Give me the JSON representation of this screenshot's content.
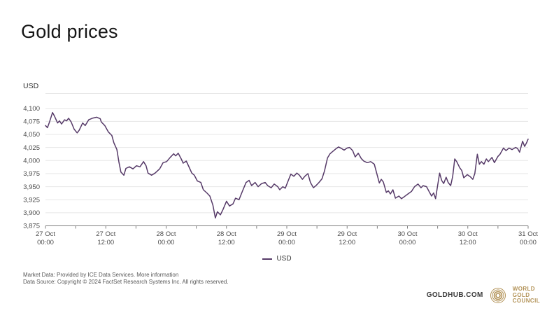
{
  "page": {
    "title": "Gold prices"
  },
  "colors": {
    "line_purple": "#563a68",
    "gold": "#b39358",
    "grid": "#e7e7e7",
    "axis": "#808080",
    "tick_text": "#4d4d4d"
  },
  "legend": {
    "label": "USD"
  },
  "footer": {
    "market_data_prefix": "Market Data: Provided by ICE Data Services. ",
    "more_info_link": "More information",
    "source_line": "Data Source: Copyright © 2024 FactSet Research Systems Inc. All rights reserved.",
    "brand": "GOLDHUB.COM",
    "logo_lines": [
      "WORLD",
      "GOLD",
      "COUNCIL"
    ]
  },
  "chart_data": {
    "type": "line",
    "title": "Gold prices",
    "ylabel": "USD",
    "ylim": [
      3875,
      4129
    ],
    "grid": true,
    "legend_position": "bottom-center",
    "yticks": [
      {
        "value": 4100,
        "label": "4,100"
      },
      {
        "value": 4075,
        "label": "4,075"
      },
      {
        "value": 4050,
        "label": "4,050"
      },
      {
        "value": 4025,
        "label": "4,025"
      },
      {
        "value": 4000,
        "label": "4,000"
      },
      {
        "value": 3975,
        "label": "3,975"
      },
      {
        "value": 3950,
        "label": "3,950"
      },
      {
        "value": 3925,
        "label": "3,925"
      },
      {
        "value": 3900,
        "label": "3,900"
      },
      {
        "value": 3875,
        "label": "3,875"
      }
    ],
    "x_axis": {
      "unit": "hours since 27 Oct 00:00",
      "range": [
        0,
        96
      ],
      "minor_tick_step": 6
    },
    "xticks": [
      {
        "pos": 0,
        "line1": "27 Oct",
        "line2": "00:00"
      },
      {
        "pos": 12,
        "line1": "27 Oct",
        "line2": "12:00"
      },
      {
        "pos": 24,
        "line1": "28 Oct",
        "line2": "00:00"
      },
      {
        "pos": 36,
        "line1": "28 Oct",
        "line2": "12:00"
      },
      {
        "pos": 48,
        "line1": "29 Oct",
        "line2": "00:00"
      },
      {
        "pos": 60,
        "line1": "29 Oct",
        "line2": "12:00"
      },
      {
        "pos": 72,
        "line1": "30 Oct",
        "line2": "00:00"
      },
      {
        "pos": 84,
        "line1": "30 Oct",
        "line2": "12:00"
      },
      {
        "pos": 96,
        "line1": "31 Oct",
        "line2": "00:00"
      }
    ],
    "series": [
      {
        "name": "USD",
        "color": "#563a68",
        "points": [
          [
            0,
            4067
          ],
          [
            0.4,
            4063
          ],
          [
            0.8,
            4074
          ],
          [
            1.4,
            4092
          ],
          [
            1.8,
            4085
          ],
          [
            2.4,
            4072
          ],
          [
            2.8,
            4076
          ],
          [
            3.2,
            4070
          ],
          [
            3.8,
            4078
          ],
          [
            4.2,
            4076
          ],
          [
            4.6,
            4081
          ],
          [
            5.1,
            4074
          ],
          [
            5.7,
            4060
          ],
          [
            6.3,
            4053
          ],
          [
            6.7,
            4058
          ],
          [
            7.4,
            4072
          ],
          [
            7.9,
            4067
          ],
          [
            8.6,
            4078
          ],
          [
            9.3,
            4081
          ],
          [
            10.2,
            4083
          ],
          [
            10.9,
            4080
          ],
          [
            11.1,
            4074
          ],
          [
            11.8,
            4067
          ],
          [
            12.5,
            4055
          ],
          [
            13.2,
            4048
          ],
          [
            13.6,
            4034
          ],
          [
            14.2,
            4021
          ],
          [
            14.6,
            3998
          ],
          [
            15,
            3978
          ],
          [
            15.6,
            3972
          ],
          [
            16,
            3985
          ],
          [
            16.7,
            3988
          ],
          [
            17.4,
            3984
          ],
          [
            18.1,
            3990
          ],
          [
            18.8,
            3988
          ],
          [
            19.5,
            3998
          ],
          [
            20,
            3990
          ],
          [
            20.4,
            3976
          ],
          [
            21.1,
            3972
          ],
          [
            21.8,
            3976
          ],
          [
            22.7,
            3984
          ],
          [
            23.4,
            3996
          ],
          [
            24.1,
            3998
          ],
          [
            24.8,
            4006
          ],
          [
            25.5,
            4013
          ],
          [
            25.9,
            4009
          ],
          [
            26.4,
            4014
          ],
          [
            27,
            4003
          ],
          [
            27.4,
            3995
          ],
          [
            28,
            3999
          ],
          [
            28.5,
            3989
          ],
          [
            29.1,
            3976
          ],
          [
            29.6,
            3972
          ],
          [
            30.2,
            3961
          ],
          [
            30.9,
            3958
          ],
          [
            31.4,
            3944
          ],
          [
            32.1,
            3938
          ],
          [
            32.7,
            3932
          ],
          [
            33.3,
            3915
          ],
          [
            33.8,
            3890
          ],
          [
            34.2,
            3902
          ],
          [
            34.8,
            3896
          ],
          [
            35.3,
            3906
          ],
          [
            36,
            3922
          ],
          [
            36.6,
            3913
          ],
          [
            37.3,
            3917
          ],
          [
            37.8,
            3928
          ],
          [
            38.5,
            3925
          ],
          [
            39.2,
            3942
          ],
          [
            39.9,
            3958
          ],
          [
            40.5,
            3962
          ],
          [
            41,
            3952
          ],
          [
            41.7,
            3958
          ],
          [
            42.3,
            3950
          ],
          [
            43,
            3956
          ],
          [
            43.7,
            3958
          ],
          [
            44.2,
            3952
          ],
          [
            44.9,
            3948
          ],
          [
            45.5,
            3955
          ],
          [
            46.2,
            3950
          ],
          [
            46.6,
            3944
          ],
          [
            47.2,
            3950
          ],
          [
            47.7,
            3947
          ],
          [
            48.3,
            3962
          ],
          [
            48.8,
            3974
          ],
          [
            49.4,
            3970
          ],
          [
            50,
            3976
          ],
          [
            50.5,
            3972
          ],
          [
            51.1,
            3964
          ],
          [
            51.6,
            3970
          ],
          [
            52.2,
            3975
          ],
          [
            52.7,
            3958
          ],
          [
            53.3,
            3948
          ],
          [
            53.8,
            3952
          ],
          [
            54.4,
            3958
          ],
          [
            55,
            3965
          ],
          [
            55.5,
            3980
          ],
          [
            56.1,
            4005
          ],
          [
            56.6,
            4013
          ],
          [
            57.2,
            4018
          ],
          [
            57.7,
            4022
          ],
          [
            58.3,
            4026
          ],
          [
            58.9,
            4023
          ],
          [
            59.4,
            4020
          ],
          [
            60,
            4024
          ],
          [
            60.5,
            4025
          ],
          [
            61.1,
            4019
          ],
          [
            61.6,
            4007
          ],
          [
            62.2,
            4014
          ],
          [
            62.8,
            4004
          ],
          [
            63.3,
            3999
          ],
          [
            64,
            3996
          ],
          [
            64.7,
            3998
          ],
          [
            65.4,
            3993
          ],
          [
            65.9,
            3975
          ],
          [
            66.4,
            3957
          ],
          [
            66.8,
            3964
          ],
          [
            67.2,
            3959
          ],
          [
            67.8,
            3939
          ],
          [
            68.2,
            3942
          ],
          [
            68.6,
            3936
          ],
          [
            69.1,
            3944
          ],
          [
            69.6,
            3928
          ],
          [
            70.3,
            3932
          ],
          [
            70.8,
            3927
          ],
          [
            71.4,
            3931
          ],
          [
            72.1,
            3936
          ],
          [
            72.8,
            3941
          ],
          [
            73.4,
            3950
          ],
          [
            74.1,
            3955
          ],
          [
            74.7,
            3948
          ],
          [
            75.1,
            3952
          ],
          [
            75.8,
            3950
          ],
          [
            76.4,
            3939
          ],
          [
            76.8,
            3932
          ],
          [
            77.2,
            3938
          ],
          [
            77.6,
            3927
          ],
          [
            78,
            3952
          ],
          [
            78.4,
            3976
          ],
          [
            78.8,
            3962
          ],
          [
            79.2,
            3956
          ],
          [
            79.7,
            3968
          ],
          [
            80.1,
            3958
          ],
          [
            80.6,
            3952
          ],
          [
            81,
            3970
          ],
          [
            81.4,
            4003
          ],
          [
            81.8,
            3998
          ],
          [
            82.4,
            3986
          ],
          [
            82.8,
            3981
          ],
          [
            83.2,
            3967
          ],
          [
            83.9,
            3973
          ],
          [
            84.5,
            3969
          ],
          [
            85,
            3964
          ],
          [
            85.4,
            3975
          ],
          [
            85.9,
            4012
          ],
          [
            86.3,
            3993
          ],
          [
            86.7,
            3998
          ],
          [
            87.2,
            3993
          ],
          [
            87.7,
            4003
          ],
          [
            88.1,
            3998
          ],
          [
            88.8,
            4006
          ],
          [
            89.3,
            3996
          ],
          [
            90,
            4008
          ],
          [
            90.4,
            4012
          ],
          [
            91.1,
            4024
          ],
          [
            91.6,
            4019
          ],
          [
            92.2,
            4024
          ],
          [
            92.8,
            4021
          ],
          [
            93.5,
            4025
          ],
          [
            93.9,
            4023
          ],
          [
            94.3,
            4016
          ],
          [
            94.9,
            4037
          ],
          [
            95.3,
            4027
          ],
          [
            95.7,
            4034
          ],
          [
            96,
            4041
          ]
        ]
      }
    ]
  }
}
